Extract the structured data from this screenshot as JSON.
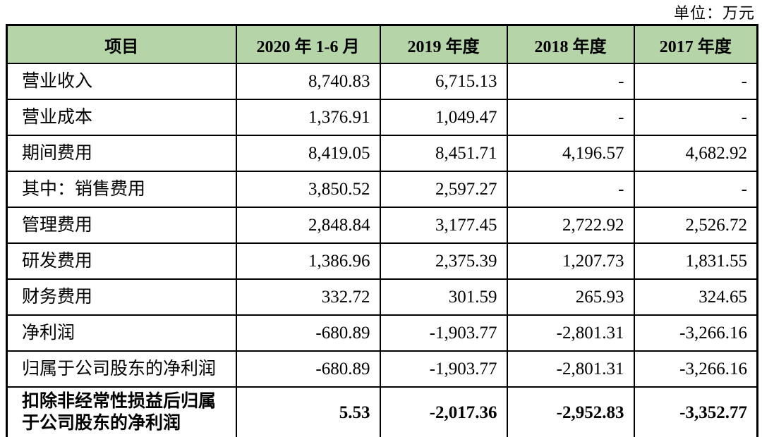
{
  "unit_label": "单位：万元",
  "colors": {
    "header_bg": "#b5d5a9",
    "border": "#000000",
    "text": "#000000"
  },
  "table": {
    "columns": [
      "项目",
      "2020 年 1-6 月",
      "2019 年度",
      "2018 年度",
      "2017 年度"
    ],
    "rows": [
      {
        "item": "营业收入",
        "values": [
          "8,740.83",
          "6,715.13",
          "-",
          "-"
        ],
        "bold": false
      },
      {
        "item": "营业成本",
        "values": [
          "1,376.91",
          "1,049.47",
          "-",
          "-"
        ],
        "bold": false
      },
      {
        "item": "期间费用",
        "values": [
          "8,419.05",
          "8,451.71",
          "4,196.57",
          "4,682.92"
        ],
        "bold": false
      },
      {
        "item": "其中：销售费用",
        "values": [
          "3,850.52",
          "2,597.27",
          "-",
          "-"
        ],
        "bold": false
      },
      {
        "item": "管理费用",
        "values": [
          "2,848.84",
          "3,177.45",
          "2,722.92",
          "2,526.72"
        ],
        "bold": false
      },
      {
        "item": "研发费用",
        "values": [
          "1,386.96",
          "2,375.39",
          "1,207.73",
          "1,831.55"
        ],
        "bold": false
      },
      {
        "item": "财务费用",
        "values": [
          "332.72",
          "301.59",
          "265.93",
          "324.65"
        ],
        "bold": false
      },
      {
        "item": "净利润",
        "values": [
          "-680.89",
          "-1,903.77",
          "-2,801.31",
          "-3,266.16"
        ],
        "bold": false
      },
      {
        "item": "归属于公司股东的净利润",
        "values": [
          "-680.89",
          "-1,903.77",
          "-2,801.31",
          "-3,266.16"
        ],
        "bold": false
      },
      {
        "item": "扣除非经常性损益后归属\n于公司股东的净利润",
        "values": [
          "5.53",
          "-2,017.36",
          "-2,952.83",
          "-3,352.77"
        ],
        "bold": true
      }
    ]
  }
}
